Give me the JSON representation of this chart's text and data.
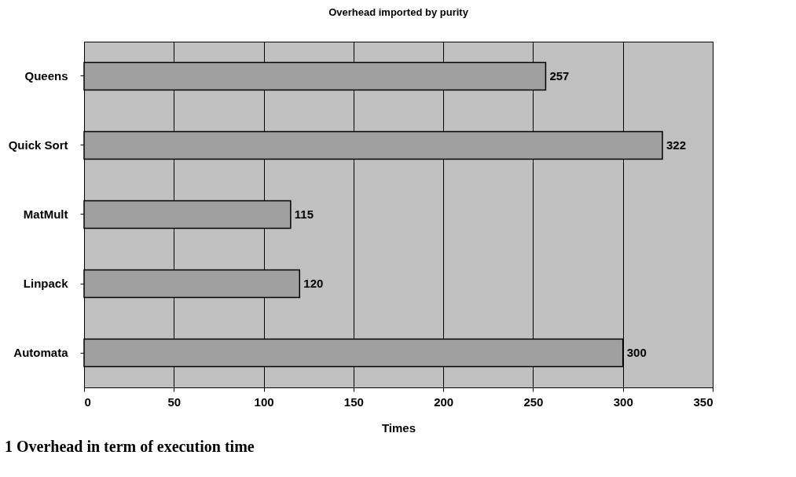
{
  "chart_data": {
    "type": "bar",
    "orientation": "horizontal",
    "title": "Overhead imported by purity",
    "xlabel": "Times",
    "categories": [
      "Queens",
      "Quick Sort",
      "MatMult",
      "Linpack",
      "Automata"
    ],
    "values": [
      257,
      322,
      115,
      120,
      300
    ],
    "color": "#a0a0a0",
    "xlim": [
      0,
      350
    ],
    "xticks": [
      0,
      50,
      100,
      150,
      200,
      250,
      300,
      350
    ],
    "grid": "x",
    "data_labels": true,
    "annotations": [
      "1 Overhead in term of execution time"
    ]
  }
}
